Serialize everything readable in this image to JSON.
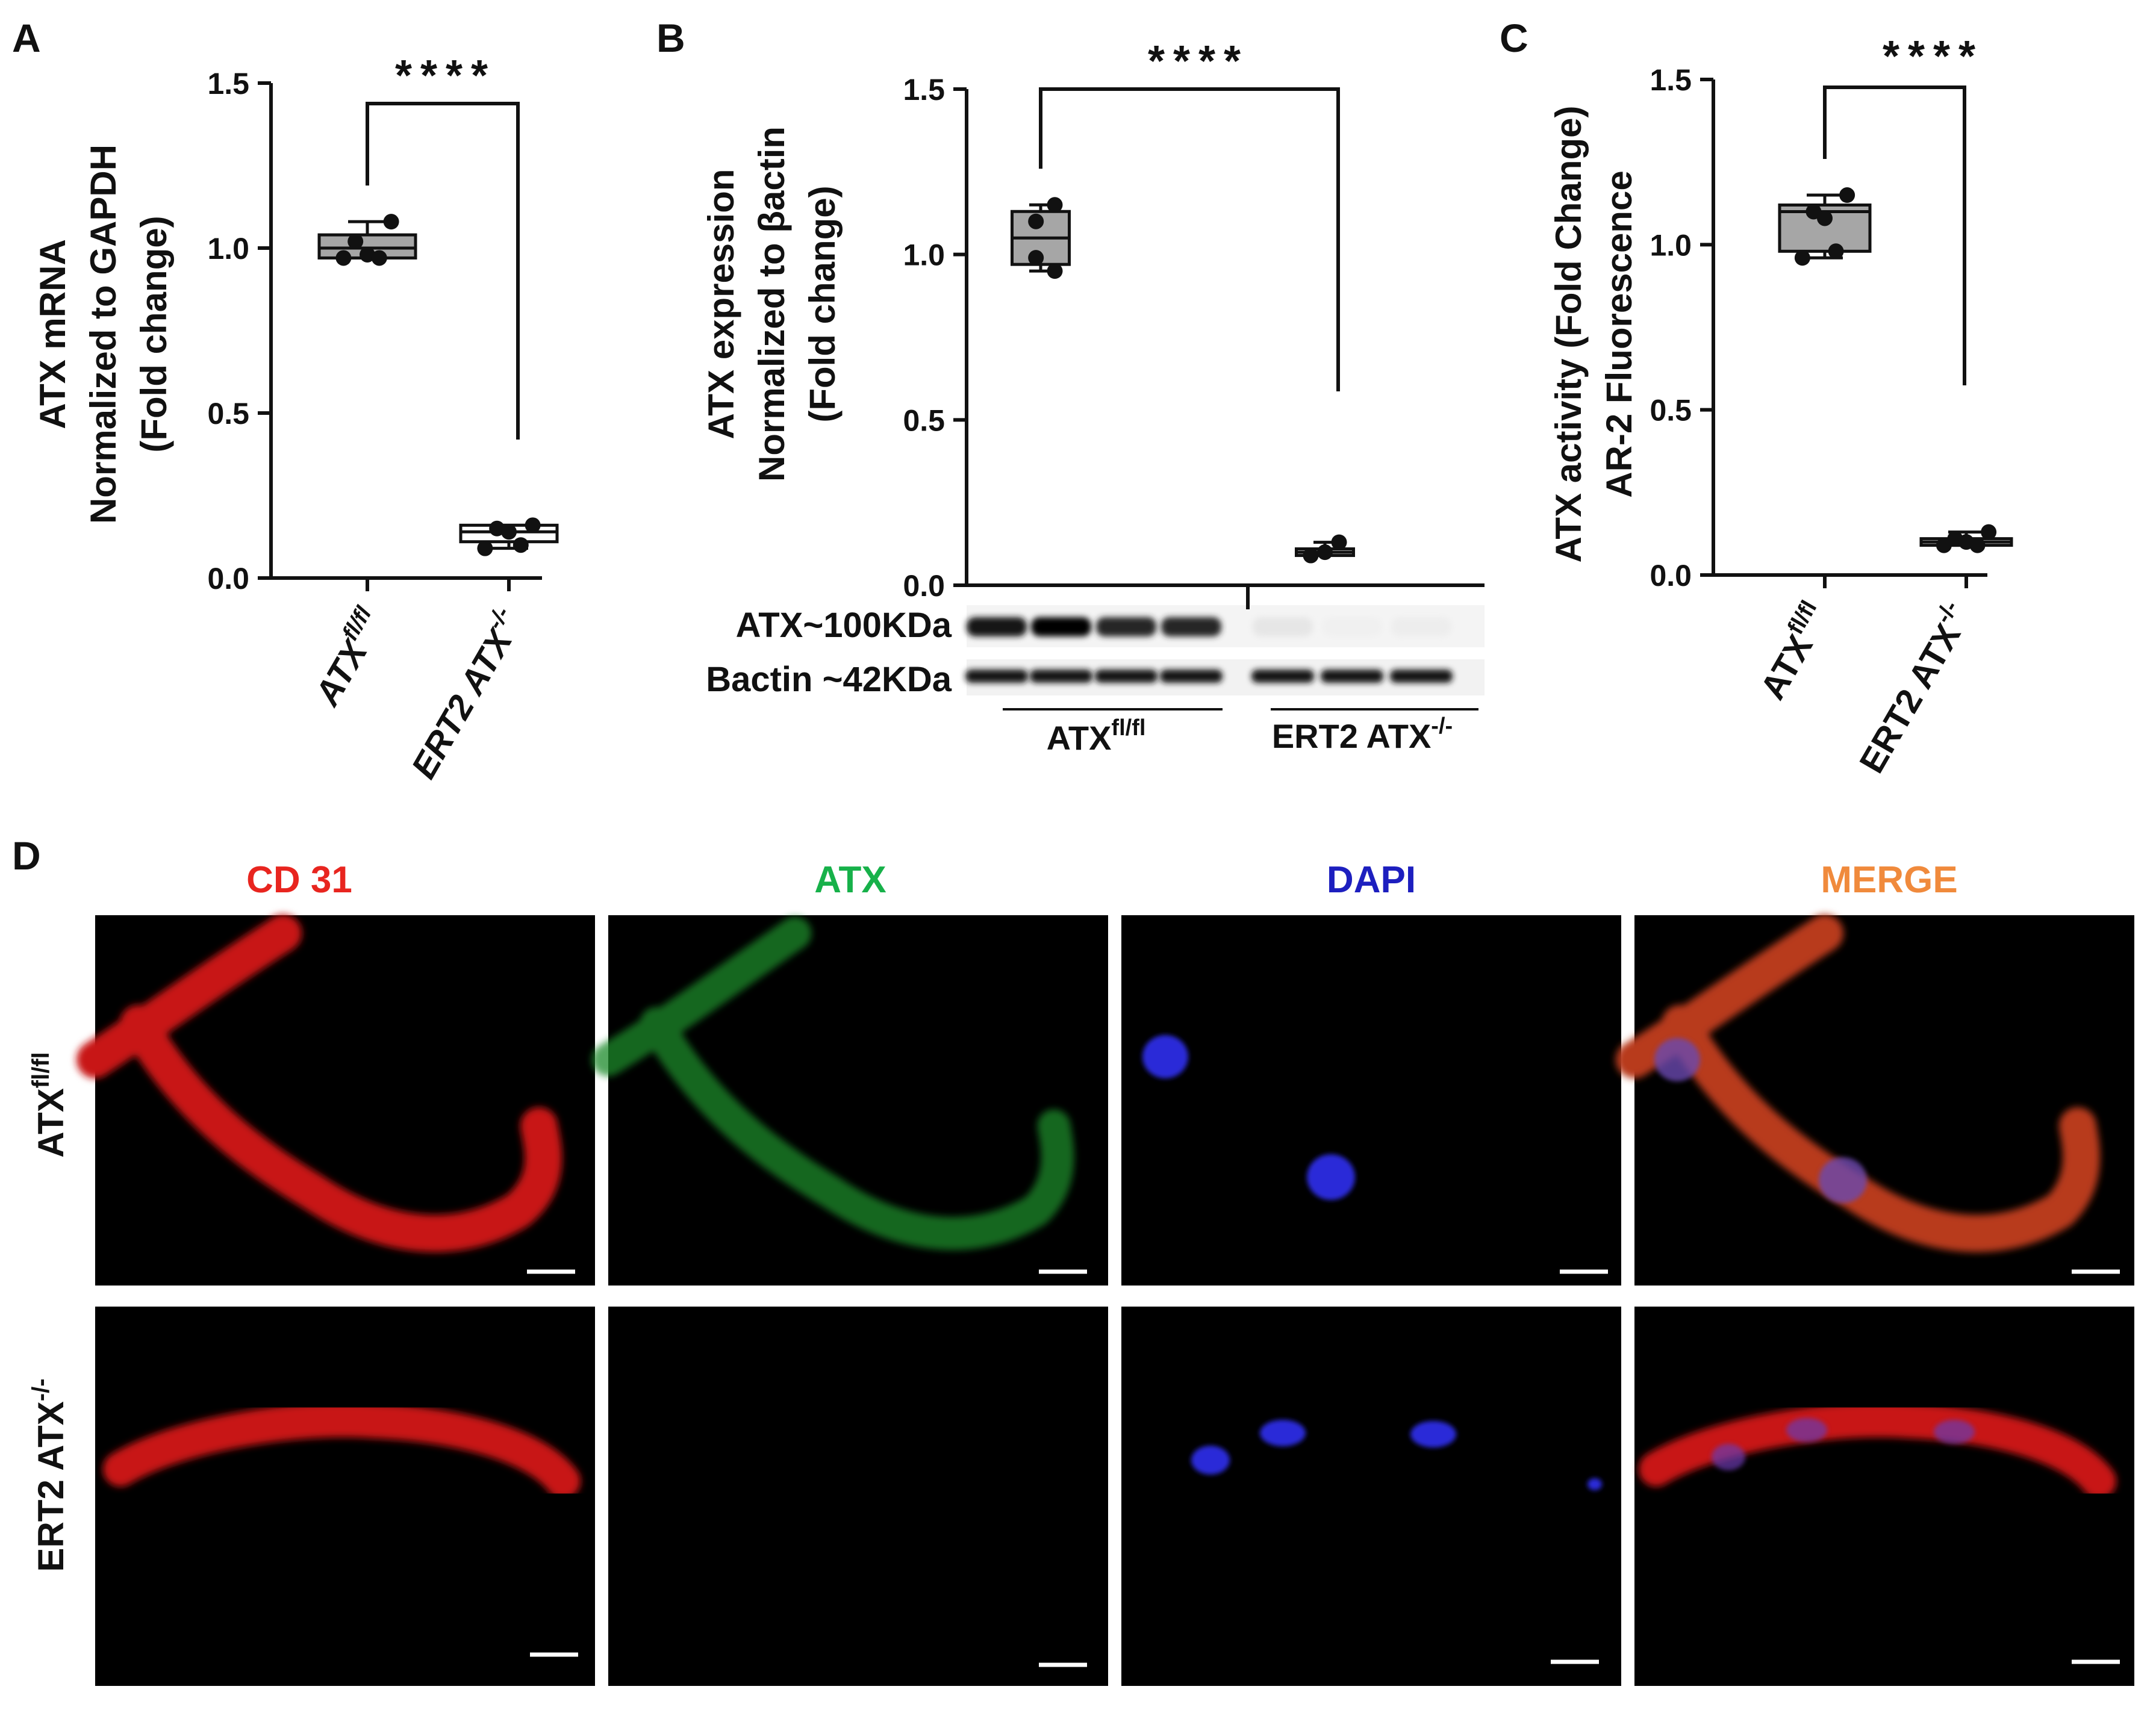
{
  "panels": {
    "a": {
      "letter": "A"
    },
    "b": {
      "letter": "B"
    },
    "c": {
      "letter": "C"
    },
    "d": {
      "letter": "D"
    }
  },
  "groups": {
    "fl_base": "ATX",
    "fl_sup": "fl/fl",
    "ko_base": "ERT2 ATX",
    "ko_sup": "-/-"
  },
  "significance": "****",
  "chart_data": [
    {
      "type": "box",
      "panel": "A",
      "ylabel_lines": [
        "ATX mRNA",
        "Normalized to GAPDH",
        "(Fold change)"
      ],
      "ylim": [
        0,
        1.5
      ],
      "yticks": [
        "0.0",
        "0.5",
        "1.0",
        "1.5"
      ],
      "categories": [
        "ATX fl/fl",
        "ERT2 ATX-/-"
      ],
      "series": [
        {
          "points": [
            1.08,
            1.02,
            0.98,
            0.97,
            0.97
          ],
          "q1": 0.97,
          "median": 1.0,
          "q3": 1.04,
          "min": 0.97,
          "max": 1.08,
          "fill": "#a6a6a6"
        },
        {
          "points": [
            0.16,
            0.15,
            0.14,
            0.1,
            0.09
          ],
          "q1": 0.11,
          "median": 0.14,
          "q3": 0.16,
          "min": 0.09,
          "max": 0.16,
          "fill": "#ffffff"
        }
      ]
    },
    {
      "type": "box",
      "panel": "B",
      "ylabel_lines": [
        "ATX expression",
        "Normalized to βactin",
        "(Fold change)"
      ],
      "ylim": [
        0,
        1.5
      ],
      "yticks": [
        "0.0",
        "0.5",
        "1.0",
        "1.5"
      ],
      "categories": [
        "ATX fl/fl",
        "ERT2 ATX-/-"
      ],
      "series": [
        {
          "points": [
            1.15,
            1.1,
            0.99,
            0.95
          ],
          "q1": 0.97,
          "median": 1.05,
          "q3": 1.13,
          "min": 0.95,
          "max": 1.15,
          "fill": "#a6a6a6"
        },
        {
          "points": [
            0.13,
            0.1,
            0.09
          ],
          "q1": 0.09,
          "median": 0.1,
          "q3": 0.11,
          "min": 0.09,
          "max": 0.13,
          "fill": "#ffffff"
        }
      ]
    },
    {
      "type": "box",
      "panel": "C",
      "ylabel_lines": [
        "ATX activity (Fold Change)",
        "AR-2 Fluorescence"
      ],
      "ylim": [
        0,
        1.5
      ],
      "yticks": [
        "0.0",
        "0.5",
        "1.0",
        "1.5"
      ],
      "categories": [
        "ATX fl/fl",
        "ERT2 ATX-/-"
      ],
      "series": [
        {
          "points": [
            1.15,
            1.1,
            1.08,
            0.98,
            0.96
          ],
          "q1": 0.98,
          "median": 1.1,
          "q3": 1.12,
          "min": 0.96,
          "max": 1.15,
          "fill": "#a6a6a6"
        },
        {
          "points": [
            0.13,
            0.11,
            0.1,
            0.09,
            0.09
          ],
          "q1": 0.09,
          "median": 0.1,
          "q3": 0.11,
          "min": 0.09,
          "max": 0.13,
          "fill": "#ffffff"
        }
      ]
    }
  ],
  "western_blot": {
    "rows": [
      "ATX~100KDa",
      "Bactin ~42KDa"
    ],
    "atx_band_intensity": [
      0.92,
      1.0,
      0.85,
      0.85,
      0.1,
      0.06,
      0.07
    ],
    "bactin_band_intensity": [
      0.9,
      0.9,
      0.9,
      0.9,
      0.9,
      0.9,
      0.9
    ],
    "group_fl": "ATX",
    "group_fl_sup": "fl/fl",
    "group_ko": "ERT2 ATX",
    "group_ko_sup": "-/-"
  },
  "microscopy": {
    "channels": [
      {
        "label": "CD 31",
        "color": "#e8251f"
      },
      {
        "label": "ATX",
        "color": "#17b14a"
      },
      {
        "label": "DAPI",
        "color": "#1d1fbf"
      },
      {
        "label": "MERGE",
        "color": "#f08a3c"
      }
    ],
    "row_fl_base": "ATX",
    "row_fl_sup": "fl/fl",
    "row_ko_base": "ERT2 ATX",
    "row_ko_sup": "-/-"
  }
}
